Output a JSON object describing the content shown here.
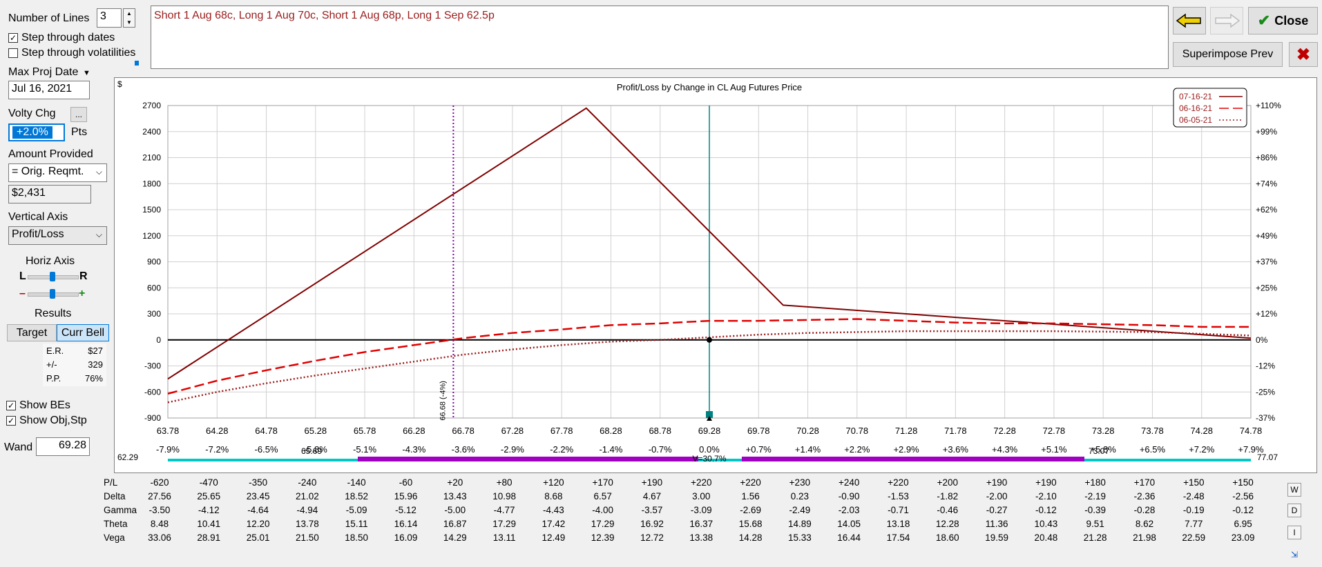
{
  "panel": {
    "num_lines_label": "Number of Lines",
    "num_lines_value": "3",
    "step_dates_label": "Step through dates",
    "step_vols_label": "Step through volatilities",
    "max_proj_label": "Max Proj Date",
    "max_proj_value": "Jul 16, 2021",
    "volty_label": "Volty Chg",
    "volty_btn": "...",
    "volty_value": "+2.0%",
    "volty_unit": "Pts",
    "amount_label": "Amount Provided",
    "amount_select": "= Orig. Reqmt.",
    "amount_value": "$2,431",
    "vaxis_label": "Vertical Axis",
    "vaxis_select": "Profit/Loss",
    "haxis_label": "Horiz Axis",
    "haxis_l": "L",
    "haxis_r": "R",
    "haxis_minus": "–",
    "haxis_plus": "+",
    "results_label": "Results",
    "target_btn": "Target",
    "currbell_btn": "Curr Bell",
    "er_label": "E.R.",
    "er_value": "$27",
    "pm_label": "+/-",
    "pm_value": "329",
    "pp_label": "P.P.",
    "pp_value": "76%",
    "show_bes_label": "Show BEs",
    "show_obj_label": "Show Obj,Stp",
    "wand_label": "Wand",
    "wand_value": "69.28"
  },
  "header": {
    "position_text": "Short 1 Aug 68c, Long 1 Aug 70c, Short 1 Aug 68p, Long 1 Sep 62.5p",
    "close_label": "Close",
    "superimpose_label": "Superimpose Prev"
  },
  "colors": {
    "accent": "#0078d7",
    "position_text": "#9b1c1c",
    "line_solid": "#800000",
    "line_dash": "#e00000",
    "line_dot": "#9b1c1c",
    "be_line": "#8000a0",
    "wand_line": "#008080",
    "band_cyan": "#00c8c8",
    "band_purple": "#a000c0",
    "close_check": "#1a8a1a",
    "x_btn": "#c00000",
    "arrow_yellow": "#f0d000"
  },
  "chart_data": {
    "type": "line",
    "title": "Profit/Loss by Change in CL Aug Futures Price",
    "ylabel": "$",
    "ylim": [
      -900,
      2700
    ],
    "y_ticks": [
      2700,
      2400,
      2100,
      1800,
      1500,
      1200,
      900,
      600,
      300,
      0,
      -300,
      -600,
      -900
    ],
    "y2_ticks": [
      "+110%",
      "+99%",
      "+86%",
      "+74%",
      "+62%",
      "+49%",
      "+37%",
      "+25%",
      "+12%",
      "0%",
      "-12%",
      "-25%",
      "-37%"
    ],
    "x_ticks": [
      "63.78",
      "64.28",
      "64.78",
      "65.28",
      "65.78",
      "66.28",
      "66.78",
      "67.28",
      "67.78",
      "68.28",
      "68.78",
      "69.28",
      "69.78",
      "70.28",
      "70.78",
      "71.28",
      "71.78",
      "72.28",
      "72.78",
      "73.28",
      "73.78",
      "74.28",
      "74.78"
    ],
    "x_pct_ticks": [
      "-7.9%",
      "-7.2%",
      "-6.5%",
      "-5.8%",
      "-5.1%",
      "-4.3%",
      "-3.6%",
      "-2.9%",
      "-2.2%",
      "-1.4%",
      "-0.7%",
      "0.0%",
      "+0.7%",
      "+1.4%",
      "+2.2%",
      "+2.9%",
      "+3.6%",
      "+4.3%",
      "+5.1%",
      "+5.8%",
      "+6.5%",
      "+7.2%",
      "+7.9%"
    ],
    "xlim": [
      63.78,
      74.78
    ],
    "series": [
      {
        "name": "07-16-21",
        "style": "solid",
        "x": [
          63.78,
          68.03,
          70.03,
          74.78
        ],
        "y": [
          -450,
          2670,
          400,
          20
        ]
      },
      {
        "name": "06-16-21",
        "style": "dash",
        "x": [
          63.78,
          64.28,
          64.78,
          65.28,
          65.78,
          66.28,
          66.78,
          67.28,
          67.78,
          68.28,
          68.78,
          69.28,
          69.78,
          70.28,
          70.78,
          71.28,
          71.78,
          72.28,
          72.78,
          73.28,
          73.78,
          74.28,
          74.78
        ],
        "y": [
          -620,
          -470,
          -350,
          -240,
          -140,
          -60,
          20,
          80,
          120,
          170,
          190,
          220,
          220,
          230,
          240,
          220,
          200,
          190,
          190,
          180,
          170,
          150,
          150
        ]
      },
      {
        "name": "06-05-21",
        "style": "dot",
        "x": [
          63.78,
          64.28,
          64.78,
          65.28,
          65.78,
          66.28,
          66.78,
          67.28,
          67.78,
          68.28,
          68.78,
          69.28,
          69.78,
          70.28,
          70.78,
          71.28,
          71.78,
          72.28,
          72.78,
          73.28,
          73.78,
          74.28,
          74.78
        ],
        "y": [
          -720,
          -600,
          -500,
          -410,
          -330,
          -250,
          -170,
          -110,
          -60,
          -20,
          0,
          30,
          60,
          80,
          90,
          100,
          100,
          100,
          100,
          95,
          90,
          70,
          50
        ]
      }
    ],
    "breakeven_x": 66.68,
    "breakeven_label": "66.68 (-4%)",
    "wand_x": 69.28,
    "band_left": "62.29",
    "band_right": "77.07",
    "band_inner_left": "65.69",
    "band_inner_right": "73.07",
    "band_center": "V=30.7%",
    "legend_placement": "top-right",
    "legend": [
      "07-16-21",
      "06-16-21",
      "06-05-21"
    ]
  },
  "table": {
    "rows": [
      {
        "label": "P/L",
        "values": [
          "-620",
          "-470",
          "-350",
          "-240",
          "-140",
          "-60",
          "+20",
          "+80",
          "+120",
          "+170",
          "+190",
          "+220",
          "+220",
          "+230",
          "+240",
          "+220",
          "+200",
          "+190",
          "+190",
          "+180",
          "+170",
          "+150",
          "+150"
        ]
      },
      {
        "label": "Delta",
        "values": [
          "27.56",
          "25.65",
          "23.45",
          "21.02",
          "18.52",
          "15.96",
          "13.43",
          "10.98",
          "8.68",
          "6.57",
          "4.67",
          "3.00",
          "1.56",
          "0.23",
          "-0.90",
          "-1.53",
          "-1.82",
          "-2.00",
          "-2.10",
          "-2.19",
          "-2.36",
          "-2.48",
          "-2.56"
        ]
      },
      {
        "label": "Gamma",
        "values": [
          "-3.50",
          "-4.12",
          "-4.64",
          "-4.94",
          "-5.09",
          "-5.12",
          "-5.00",
          "-4.77",
          "-4.43",
          "-4.00",
          "-3.57",
          "-3.09",
          "-2.69",
          "-2.49",
          "-2.03",
          "-0.71",
          "-0.46",
          "-0.27",
          "-0.12",
          "-0.39",
          "-0.28",
          "-0.19",
          "-0.12"
        ]
      },
      {
        "label": "Theta",
        "values": [
          "8.48",
          "10.41",
          "12.20",
          "13.78",
          "15.11",
          "16.14",
          "16.87",
          "17.29",
          "17.42",
          "17.29",
          "16.92",
          "16.37",
          "15.68",
          "14.89",
          "14.05",
          "13.18",
          "12.28",
          "11.36",
          "10.43",
          "9.51",
          "8.62",
          "7.77",
          "6.95"
        ]
      },
      {
        "label": "Vega",
        "values": [
          "33.06",
          "28.91",
          "25.01",
          "21.50",
          "18.50",
          "16.09",
          "14.29",
          "13.11",
          "12.49",
          "12.39",
          "12.72",
          "13.38",
          "14.28",
          "15.33",
          "16.44",
          "17.54",
          "18.60",
          "19.59",
          "20.48",
          "21.28",
          "21.98",
          "22.59",
          "23.09"
        ]
      }
    ],
    "side_buttons": [
      "W",
      "D",
      "I"
    ]
  }
}
